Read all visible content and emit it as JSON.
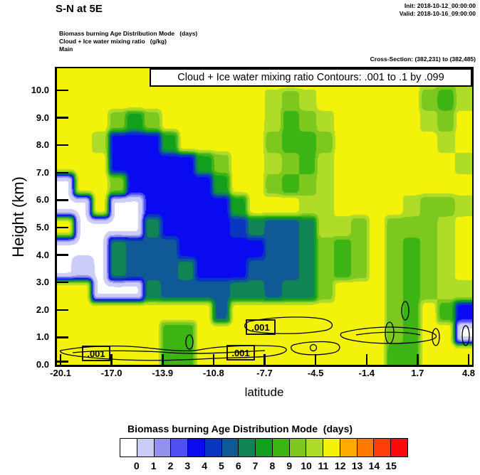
{
  "header": {
    "title": "S-N at 5E",
    "init": "Init: 2018-10-12_00:00:00",
    "valid": "Valid: 2018-10-16_09:00:00",
    "field_line1": "Biomass burning Age Distribution Mode   (days)",
    "field_line2": "Cloud + Ice water mixing ratio   (g/kg)",
    "field_line3": "Main",
    "cross_section": "Cross-Section: (382,231) to (382,485)"
  },
  "plot": {
    "contour_box_title": "Cloud + Ice water mixing ratio Contours: .001 to .1 by .099",
    "contour_label": ".001",
    "x_axis": {
      "title": "latitude",
      "tick_labels": [
        "-20.1",
        "-17.0",
        "-13.9",
        "-10.8",
        "-7.7",
        "-4.5",
        "-1.4",
        "1.7",
        "4.8"
      ]
    },
    "y_axis": {
      "title": "Height (km)",
      "tick_labels": [
        "10.0",
        "9.0",
        "8.0",
        "7.0",
        "6.0",
        "5.0",
        "4.0",
        "3.0",
        "2.0",
        "1.0",
        "0.0"
      ]
    }
  },
  "colorbar": {
    "title": "Biomass burning Age Distribution Mode  (days)",
    "tick_labels": [
      "0",
      "1",
      "2",
      "3",
      "4",
      "5",
      "6",
      "7",
      "8",
      "9",
      "10",
      "11",
      "12",
      "13",
      "14",
      "15"
    ],
    "colors": [
      "#FFFFFF",
      "#CCCCF8",
      "#9292EE",
      "#5050F2",
      "#0A0AF0",
      "#0A35BE",
      "#0F5A96",
      "#108455",
      "#12A01E",
      "#3CB414",
      "#7DC81E",
      "#AFDC28",
      "#F2F20A",
      "#FFAA00",
      "#FF7800",
      "#FF3C0A",
      "#FA0A0A"
    ]
  },
  "chart_data": {
    "type": "heatmap",
    "title": "Biomass burning Age Distribution Mode (days) — vertical cross-section S-N at 5E",
    "xlabel": "latitude",
    "ylabel": "Height (km)",
    "x_range": [
      -20.3,
      5.0
    ],
    "y_range_km": [
      0,
      10.8
    ],
    "units": "days",
    "color_scale_boundaries": [
      0,
      1,
      2,
      3,
      4,
      5,
      6,
      7,
      8,
      9,
      10,
      11,
      12,
      13,
      14,
      15
    ],
    "contour_overlay": {
      "field": "Cloud + Ice water mixing ratio (g/kg)",
      "levels_from": 0.001,
      "levels_to": 0.1,
      "levels_by": 0.099,
      "label": ".001",
      "location_note": "contour loops hug the surface below ~1.5 km across most latitudes"
    },
    "grid_note": "approximate age (days) on 14 rows (top=10.8 km .. bottom=0 km) x 24 cols (lat -20.3 .. 5.0); 0 = white (age < 1 day)",
    "values": [
      [
        11.5,
        11.5,
        11.5,
        11.5,
        11.5,
        11.5,
        11.5,
        11.5,
        11.5,
        11.5,
        11.5,
        11.5,
        11.5,
        11.5,
        11.5,
        11.5,
        11.5,
        11.5,
        11.5,
        11.5,
        11.5,
        10.5,
        9.5,
        10.5
      ],
      [
        11.5,
        11.5,
        11.5,
        11.5,
        11.5,
        11.5,
        11.5,
        11.5,
        11.5,
        11.5,
        11.5,
        11.5,
        10.5,
        9.5,
        10.5,
        11.5,
        11.5,
        11.5,
        11.5,
        11.5,
        11.5,
        9.5,
        8.5,
        10.5
      ],
      [
        11.5,
        11.5,
        11.5,
        9.5,
        7.5,
        9.5,
        11.5,
        11.5,
        11.5,
        11.5,
        11.5,
        11.5,
        10.5,
        8.5,
        9.5,
        10.5,
        11.5,
        11.5,
        11.5,
        11.5,
        11.5,
        10.5,
        9.5,
        11.5
      ],
      [
        11.5,
        11.5,
        10.5,
        3.5,
        3.5,
        3.5,
        7.5,
        11.5,
        11.5,
        11.5,
        11.5,
        11.5,
        9.5,
        8.5,
        8.5,
        9.5,
        11.5,
        11.5,
        11.5,
        11.5,
        11.5,
        11.5,
        10.5,
        11.5
      ],
      [
        11.5,
        11.5,
        11.5,
        3.5,
        3.5,
        3.5,
        3.5,
        3.5,
        7.5,
        9.5,
        11.5,
        11.5,
        10.5,
        9.5,
        8.5,
        10.5,
        11.5,
        11.5,
        11.5,
        11.5,
        11.5,
        11.5,
        11.5,
        10.5
      ],
      [
        0,
        11.5,
        11.5,
        9.5,
        3.5,
        3.5,
        3.5,
        3.5,
        3.5,
        7.5,
        11.5,
        11.5,
        9.5,
        8.5,
        9.5,
        10.5,
        11.5,
        11.5,
        11.5,
        11.5,
        11.5,
        11.5,
        11.5,
        11.5
      ],
      [
        0,
        0,
        11.5,
        0,
        0,
        3.5,
        3.5,
        3.5,
        3.5,
        3.5,
        7.5,
        11.5,
        11.5,
        11.5,
        10.5,
        10.5,
        11.5,
        11.5,
        11.5,
        11.5,
        10.5,
        9.5,
        9.5,
        10.5
      ],
      [
        11.5,
        0,
        0,
        0,
        0,
        6.5,
        3.5,
        3.5,
        3.5,
        3.5,
        4.5,
        6.5,
        5.5,
        5.5,
        6.5,
        10.5,
        10.5,
        9.5,
        11.5,
        9.5,
        9.5,
        9.5,
        10.5,
        11.5
      ],
      [
        0,
        0,
        0,
        6.5,
        5.5,
        5.5,
        5.5,
        3.5,
        3.5,
        3.5,
        3.5,
        3.5,
        5.5,
        5.5,
        6.5,
        9.5,
        8.5,
        9.5,
        11.5,
        9.5,
        8.5,
        9.5,
        10.5,
        11.5
      ],
      [
        0,
        0.5,
        0,
        6.5,
        5.5,
        5.5,
        5.5,
        6.5,
        3.5,
        3.5,
        3.5,
        5.5,
        5.5,
        5.5,
        6.5,
        9.5,
        8.5,
        9.5,
        11.5,
        9.5,
        8.5,
        9.5,
        10.5,
        11.5
      ],
      [
        11.5,
        11.5,
        0,
        0,
        0,
        6.5,
        5.5,
        5.5,
        5.5,
        5.5,
        6.5,
        6.5,
        5.5,
        6.5,
        6.5,
        9.5,
        11.5,
        11.5,
        11.5,
        9.5,
        8.5,
        9.5,
        10.5,
        10.5
      ],
      [
        11.5,
        11.5,
        11.5,
        11.5,
        11.5,
        11.5,
        11.5,
        11.5,
        11.5,
        5.5,
        11.5,
        11.5,
        11.5,
        11.5,
        11.5,
        11.5,
        11.5,
        11.5,
        11.5,
        9.5,
        8.5,
        11.5,
        8.5,
        3.5
      ],
      [
        11.5,
        11.5,
        11.5,
        11.5,
        11.5,
        11.5,
        8.5,
        8.5,
        11.5,
        11.5,
        11.5,
        11.5,
        11.5,
        11.5,
        11.5,
        11.5,
        11.5,
        11.5,
        11.5,
        9.5,
        8.5,
        11.5,
        11.5,
        0
      ],
      [
        11.5,
        11.5,
        11.5,
        11.5,
        11.5,
        11.5,
        8.5,
        8.5,
        11.5,
        11.5,
        11.5,
        11.5,
        11.5,
        11.5,
        11.5,
        11.5,
        11.5,
        11.5,
        11.5,
        8.5,
        8.5,
        11.5,
        11.5,
        11.5
      ]
    ]
  }
}
